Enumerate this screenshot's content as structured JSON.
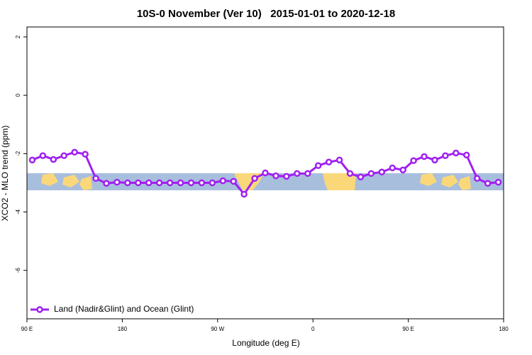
{
  "chart_data": {
    "type": "line",
    "title": "10S-0 November (Ver 10)   2015-01-01 to 2020-12-18",
    "x_label": "Longitude (deg E)",
    "y_label": "XCO2 - MLO trend (ppm)",
    "x": [
      95,
      105,
      115,
      125,
      135,
      145,
      155,
      165,
      175,
      185,
      195,
      205,
      215,
      225,
      235,
      245,
      255,
      265,
      275,
      285,
      295,
      305,
      315,
      325,
      335,
      345,
      355,
      365,
      375,
      385,
      395,
      405,
      415,
      425,
      435,
      445,
      455,
      465,
      475,
      485,
      495,
      505,
      515,
      525,
      535
    ],
    "series": [
      {
        "name": "Land (Nadir&Glint) and Ocean (Glint)",
        "color": "#a020f0",
        "values": [
          -2.22,
          -2.07,
          -2.2,
          -2.07,
          -1.95,
          -2.02,
          -2.85,
          -3.02,
          -2.98,
          -3.0,
          -3.0,
          -3.0,
          -3.0,
          -3.0,
          -3.0,
          -3.0,
          -3.0,
          -3.0,
          -2.93,
          -2.95,
          -3.39,
          -2.85,
          -2.66,
          -2.76,
          -2.78,
          -2.68,
          -2.68,
          -2.41,
          -2.29,
          -2.22,
          -2.68,
          -2.8,
          -2.68,
          -2.63,
          -2.49,
          -2.56,
          -2.24,
          -2.1,
          -2.22,
          -2.07,
          -1.98,
          -2.05,
          -2.85,
          -3.02,
          -2.98
        ]
      }
    ],
    "xlim": [
      90,
      540
    ],
    "xticks": [
      {
        "value": 90,
        "label": "90 E"
      },
      180,
      {
        "value": 270,
        "label": "90 W"
      },
      {
        "value": 360,
        "label": "0"
      },
      {
        "value": 450,
        "label": "90 E"
      },
      {
        "value": 540,
        "label": "180"
      }
    ],
    "ylim": [
      -7.66,
      2.34
    ],
    "yticks": [
      2,
      0,
      -2,
      -4,
      -6
    ],
    "legend": "bottom-left"
  }
}
